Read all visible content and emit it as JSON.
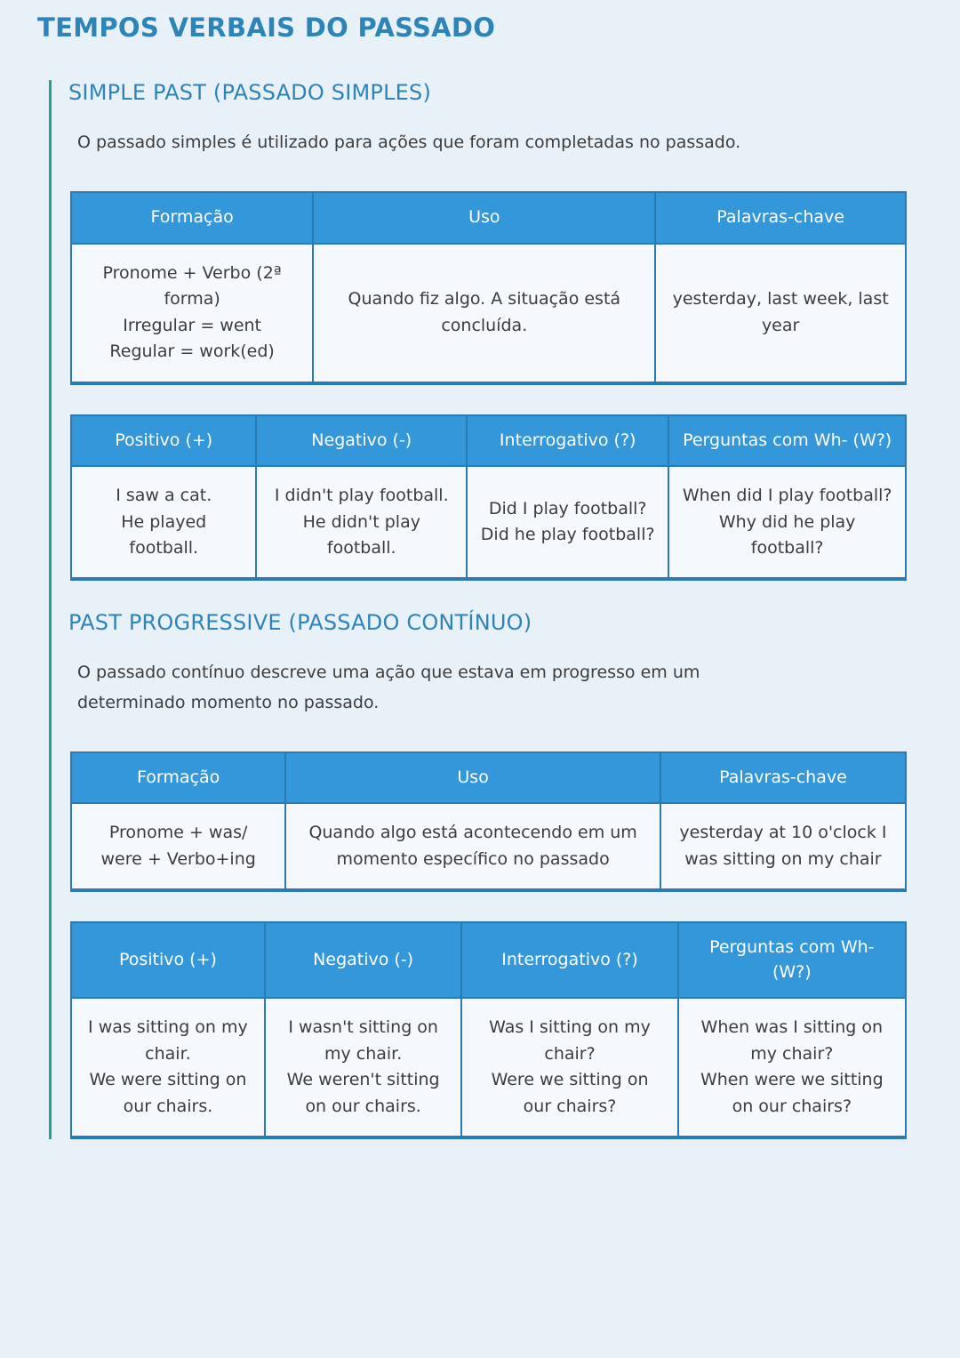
{
  "page": {
    "title": "TEMPOS VERBAIS DO PASSADO"
  },
  "theme": {
    "background": "#e9f1f8",
    "table_header_blue": "#3497da",
    "table_border_blue": "#2a7ab5",
    "heading_blue": "#2c84b8",
    "left_rail_teal": "#25a08f",
    "body_text": "#3c3c3c",
    "cell_background": "#f5f9fd",
    "header_text": "#ffffff"
  },
  "sections": [
    {
      "heading": "SIMPLE PAST (PASSADO SIMPLES)",
      "description": "O passado simples é utilizado para ações que foram completadas no passado.",
      "tables": [
        {
          "headers": [
            "Formação",
            "Uso",
            "Palavras-chave"
          ],
          "rows": [
            [
              [
                "Pronome + Verbo (2ª forma)",
                "Irregular = went",
                "Regular = work(ed)"
              ],
              "Quando fiz algo. A situação está concluída.",
              "yesterday, last week, last year"
            ]
          ]
        },
        {
          "headers": [
            "Positivo (+)",
            "Negativo (-)",
            "Interrogativo (?)",
            "Perguntas com Wh- (W?)"
          ],
          "rows": [
            [
              [
                "I saw a cat.",
                "He played football."
              ],
              [
                "I didn't play football.",
                "He didn't play football."
              ],
              [
                "Did I play football?",
                "Did he play football?"
              ],
              [
                "When did I play football?",
                "Why did he play football?"
              ]
            ]
          ]
        }
      ]
    },
    {
      "heading": "PAST PROGRESSIVE (PASSADO CONTÍNUO)",
      "description": "O passado contínuo descreve uma ação que estava em progresso em um determinado momento no passado.",
      "tables": [
        {
          "headers": [
            "Formação",
            "Uso",
            "Palavras-chave"
          ],
          "rows": [
            [
              [
                "Pronome + was/",
                "were + Verbo+ing"
              ],
              "Quando algo está acontecendo em um momento específico no passado",
              "yesterday at 10 o'clock I was sitting on my chair"
            ]
          ]
        },
        {
          "headers": [
            "Positivo (+)",
            "Negativo (-)",
            "Interrogativo (?)",
            "Perguntas com Wh- (W?)"
          ],
          "rows": [
            [
              [
                "I was sitting on my chair.",
                "We were sitting on our chairs."
              ],
              [
                "I wasn't sitting on my chair.",
                "We weren't sitting on our chairs."
              ],
              [
                "Was I sitting on my chair?",
                "Were we sitting on our chairs?"
              ],
              [
                "When was I sitting on my chair?",
                "When were we sitting on our chairs?"
              ]
            ]
          ]
        }
      ]
    }
  ]
}
